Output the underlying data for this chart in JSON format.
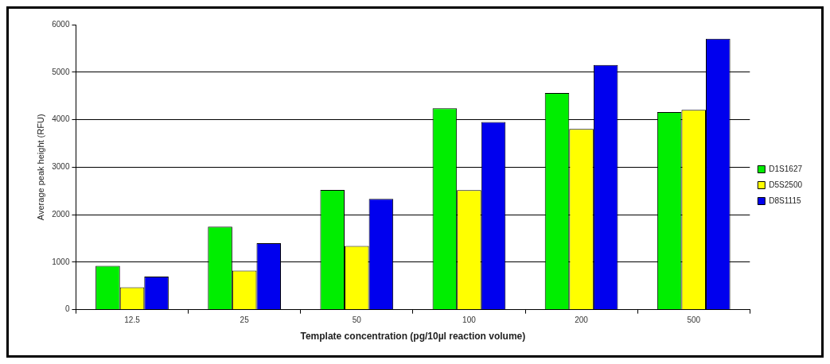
{
  "chart_data": {
    "type": "bar",
    "xlabel": "Template concentration (pg/10µl reaction volume)",
    "ylabel": "Average peak height (RFU)",
    "categories": [
      "12.5",
      "25",
      "50",
      "100",
      "200",
      "500"
    ],
    "series": [
      {
        "name": "D1S1627",
        "color": "#00ee00",
        "values": [
          920,
          1745,
          2520,
          4240,
          4560,
          4160
        ]
      },
      {
        "name": "D5S2500",
        "color": "#ffff00",
        "values": [
          470,
          820,
          1340,
          2515,
          3805,
          4205
        ]
      },
      {
        "name": "D8S1115",
        "color": "#0000ee",
        "values": [
          695,
          1400,
          2330,
          3950,
          5150,
          5705
        ]
      }
    ],
    "ylim": [
      0,
      6000
    ],
    "yticks": [
      0,
      1000,
      2000,
      3000,
      4000,
      5000,
      6000
    ],
    "grid": "y",
    "legend": "right"
  }
}
